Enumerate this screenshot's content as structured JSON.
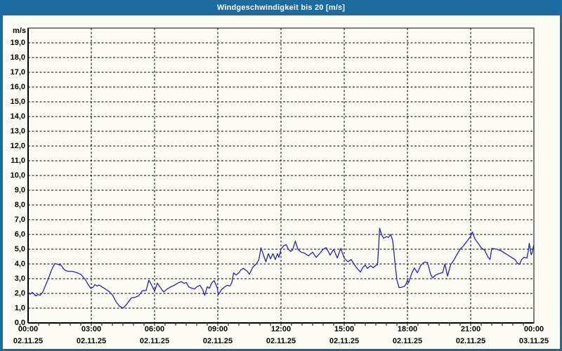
{
  "window": {
    "title": "Windgeschwindigkeit bis 20 [m/s]"
  },
  "colors": {
    "accent": "#1c6a9e",
    "background": "#fdfdf5",
    "line": "#2222cc",
    "grid": "#000000",
    "text": "#000000"
  },
  "chart_data": {
    "type": "line",
    "title": "Windgeschwindigkeit bis 20 [m/s]",
    "unit": "m/s",
    "ylabel": "m/s",
    "xlabel": "",
    "ylim": [
      0,
      20
    ],
    "x_hours": 24,
    "grid": "dashed",
    "legend": "none",
    "line_color": "#2222cc",
    "y_tick_labels": [
      "0,0",
      "1,0",
      "2,0",
      "3,0",
      "4,0",
      "5,0",
      "6,0",
      "7,0",
      "8,0",
      "9,0",
      "10,0",
      "11,0",
      "12,0",
      "13,0",
      "14,0",
      "15,0",
      "16,0",
      "17,0",
      "18,0",
      "19,0"
    ],
    "x_ticks": [
      {
        "hour": 0,
        "time": "00:00",
        "date": "02.11.25"
      },
      {
        "hour": 3,
        "time": "03:00",
        "date": "02.11.25"
      },
      {
        "hour": 6,
        "time": "06:00",
        "date": "02.11.25"
      },
      {
        "hour": 9,
        "time": "09:00",
        "date": "02.11.25"
      },
      {
        "hour": 12,
        "time": "12:00",
        "date": "02.11.25"
      },
      {
        "hour": 15,
        "time": "15:00",
        "date": "02.11.25"
      },
      {
        "hour": 18,
        "time": "18:00",
        "date": "02.11.25"
      },
      {
        "hour": 21,
        "time": "21:00",
        "date": "02.11.25"
      },
      {
        "hour": 24,
        "time": "00:00",
        "date": "03.11.25"
      }
    ],
    "series": [
      {
        "name": "Windgeschwindigkeit",
        "points": [
          [
            0,
            2.1
          ],
          [
            0.1,
            1.95
          ],
          [
            0.2,
            2.08
          ],
          [
            0.37,
            1.83
          ],
          [
            0.47,
            1.93
          ],
          [
            0.57,
            1.87
          ],
          [
            0.7,
            2.1
          ],
          [
            0.8,
            2.45
          ],
          [
            0.9,
            2.8
          ],
          [
            1.0,
            3.15
          ],
          [
            1.1,
            3.55
          ],
          [
            1.18,
            3.8
          ],
          [
            1.27,
            4.03
          ],
          [
            1.43,
            3.97
          ],
          [
            1.57,
            3.9
          ],
          [
            1.67,
            3.7
          ],
          [
            1.77,
            3.55
          ],
          [
            1.92,
            3.5
          ],
          [
            2.1,
            3.5
          ],
          [
            2.33,
            3.4
          ],
          [
            2.5,
            3.3
          ],
          [
            2.62,
            3.1
          ],
          [
            2.73,
            2.9
          ],
          [
            2.85,
            2.6
          ],
          [
            2.97,
            2.35
          ],
          [
            3.08,
            2.42
          ],
          [
            3.17,
            2.6
          ],
          [
            3.27,
            2.5
          ],
          [
            3.37,
            2.57
          ],
          [
            3.5,
            2.45
          ],
          [
            3.67,
            2.3
          ],
          [
            3.83,
            2.15
          ],
          [
            4.0,
            1.9
          ],
          [
            4.17,
            1.45
          ],
          [
            4.33,
            1.15
          ],
          [
            4.5,
            1.0
          ],
          [
            4.63,
            1.18
          ],
          [
            4.77,
            1.45
          ],
          [
            4.9,
            1.7
          ],
          [
            5.1,
            1.75
          ],
          [
            5.25,
            1.85
          ],
          [
            5.42,
            2.18
          ],
          [
            5.6,
            2.2
          ],
          [
            5.73,
            2.9
          ],
          [
            5.85,
            2.6
          ],
          [
            6.0,
            2.15
          ],
          [
            6.13,
            2.7
          ],
          [
            6.3,
            2.35
          ],
          [
            6.43,
            2.1
          ],
          [
            6.6,
            2.3
          ],
          [
            6.77,
            2.45
          ],
          [
            6.93,
            2.55
          ],
          [
            7.1,
            2.7
          ],
          [
            7.27,
            2.8
          ],
          [
            7.4,
            2.68
          ],
          [
            7.5,
            2.75
          ],
          [
            7.62,
            2.45
          ],
          [
            7.77,
            2.35
          ],
          [
            7.9,
            2.3
          ],
          [
            8.0,
            2.45
          ],
          [
            8.15,
            2.55
          ],
          [
            8.27,
            2.3
          ],
          [
            8.38,
            1.88
          ],
          [
            8.5,
            2.45
          ],
          [
            8.6,
            2.35
          ],
          [
            8.73,
            2.75
          ],
          [
            8.83,
            2.87
          ],
          [
            8.97,
            2.4
          ],
          [
            9.03,
            1.93
          ],
          [
            9.17,
            2.25
          ],
          [
            9.33,
            2.45
          ],
          [
            9.45,
            2.55
          ],
          [
            9.58,
            2.5
          ],
          [
            9.67,
            2.75
          ],
          [
            9.75,
            3.4
          ],
          [
            9.87,
            3.25
          ],
          [
            10.0,
            3.4
          ],
          [
            10.1,
            3.6
          ],
          [
            10.22,
            3.7
          ],
          [
            10.4,
            3.5
          ],
          [
            10.5,
            3.3
          ],
          [
            10.67,
            3.8
          ],
          [
            10.83,
            4.0
          ],
          [
            10.95,
            4.3
          ],
          [
            11.05,
            5.1
          ],
          [
            11.17,
            4.6
          ],
          [
            11.28,
            4.15
          ],
          [
            11.4,
            4.7
          ],
          [
            11.5,
            4.35
          ],
          [
            11.62,
            4.7
          ],
          [
            11.73,
            4.3
          ],
          [
            11.83,
            4.7
          ],
          [
            11.9,
            4.45
          ],
          [
            12.0,
            5.0
          ],
          [
            12.13,
            5.25
          ],
          [
            12.25,
            5.3
          ],
          [
            12.35,
            5.0
          ],
          [
            12.45,
            4.85
          ],
          [
            12.55,
            4.95
          ],
          [
            12.68,
            5.55
          ],
          [
            12.8,
            5.0
          ],
          [
            12.95,
            4.8
          ],
          [
            13.1,
            4.75
          ],
          [
            13.3,
            4.55
          ],
          [
            13.5,
            4.8
          ],
          [
            13.67,
            4.45
          ],
          [
            13.83,
            4.7
          ],
          [
            14.0,
            5.0
          ],
          [
            14.15,
            5.1
          ],
          [
            14.33,
            4.6
          ],
          [
            14.5,
            5.0
          ],
          [
            14.67,
            4.4
          ],
          [
            14.83,
            5.05
          ],
          [
            15.0,
            4.4
          ],
          [
            15.17,
            4.15
          ],
          [
            15.33,
            4.3
          ],
          [
            15.55,
            3.8
          ],
          [
            15.77,
            3.45
          ],
          [
            15.9,
            3.8
          ],
          [
            16.0,
            3.92
          ],
          [
            16.1,
            3.7
          ],
          [
            16.25,
            3.88
          ],
          [
            16.37,
            3.75
          ],
          [
            16.5,
            3.9
          ],
          [
            16.58,
            3.95
          ],
          [
            16.63,
            5.1
          ],
          [
            16.68,
            6.43
          ],
          [
            16.77,
            6.0
          ],
          [
            16.87,
            5.75
          ],
          [
            17.0,
            5.85
          ],
          [
            17.1,
            5.8
          ],
          [
            17.2,
            6.0
          ],
          [
            17.3,
            5.6
          ],
          [
            17.4,
            4.2
          ],
          [
            17.5,
            2.9
          ],
          [
            17.6,
            2.4
          ],
          [
            17.73,
            2.42
          ],
          [
            17.87,
            2.5
          ],
          [
            17.95,
            2.7
          ],
          [
            18.0,
            2.9
          ],
          [
            18.05,
            2.72
          ],
          [
            18.2,
            3.35
          ],
          [
            18.33,
            3.73
          ],
          [
            18.47,
            3.4
          ],
          [
            18.63,
            3.9
          ],
          [
            18.8,
            4.13
          ],
          [
            18.95,
            4.1
          ],
          [
            19.1,
            3.3
          ],
          [
            19.2,
            3.05
          ],
          [
            19.33,
            3.25
          ],
          [
            19.5,
            3.35
          ],
          [
            19.67,
            3.42
          ],
          [
            19.78,
            4.0
          ],
          [
            19.9,
            3.17
          ],
          [
            20.05,
            3.95
          ],
          [
            20.22,
            4.3
          ],
          [
            20.33,
            4.6
          ],
          [
            20.5,
            5.0
          ],
          [
            20.67,
            5.25
          ],
          [
            20.83,
            5.55
          ],
          [
            21.0,
            5.88
          ],
          [
            21.08,
            6.17
          ],
          [
            21.2,
            5.7
          ],
          [
            21.33,
            5.45
          ],
          [
            21.5,
            5.1
          ],
          [
            21.67,
            4.92
          ],
          [
            21.83,
            4.45
          ],
          [
            21.92,
            4.3
          ],
          [
            22.0,
            5.05
          ],
          [
            22.25,
            5.0
          ],
          [
            22.43,
            4.9
          ],
          [
            22.6,
            4.75
          ],
          [
            22.77,
            4.6
          ],
          [
            22.93,
            4.45
          ],
          [
            23.1,
            4.3
          ],
          [
            23.22,
            4.05
          ],
          [
            23.31,
            3.97
          ],
          [
            23.42,
            4.3
          ],
          [
            23.53,
            4.45
          ],
          [
            23.67,
            4.4
          ],
          [
            23.73,
            4.85
          ],
          [
            23.78,
            5.4
          ],
          [
            23.87,
            4.62
          ],
          [
            23.92,
            4.75
          ],
          [
            24.0,
            5.35
          ]
        ]
      }
    ]
  }
}
